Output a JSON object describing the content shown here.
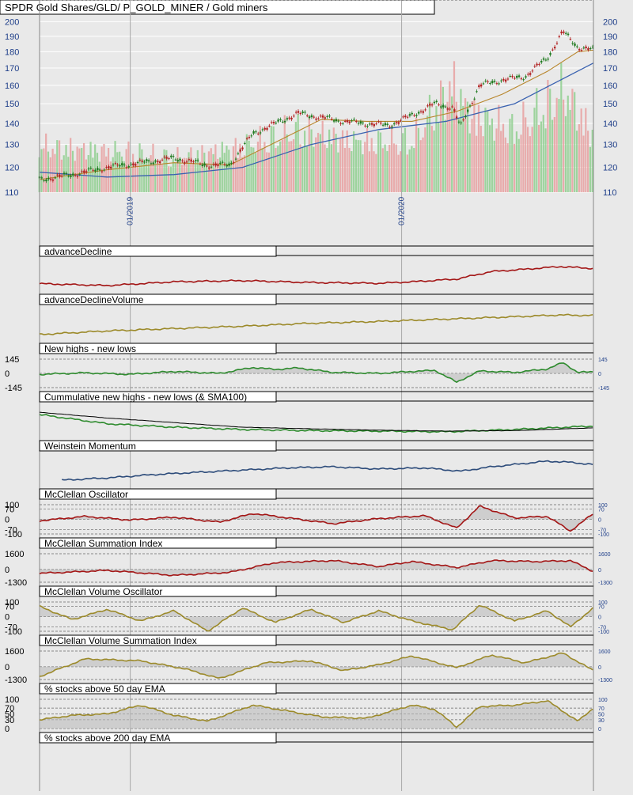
{
  "chart_data": {
    "type": "line",
    "title": "SPDR Gold Shares/GLD/ P_GOLD_MINER / Gold miners",
    "x_range": [
      "2018-09-01",
      "2020-09-15"
    ],
    "x_ticks": [
      {
        "label": "01/2019",
        "date": "2019-01-01"
      },
      {
        "label": "01/2020",
        "date": "2020-01-01"
      }
    ],
    "colors": {
      "price_up": "#1f7a1f",
      "price_down": "#b22222",
      "sma50": "#b8862c",
      "sma200": "#3a62b0",
      "volume_up": "#8fcf8f",
      "volume_down": "#e8a0a0",
      "ad": "#a31515",
      "adv": "#9c8a2a",
      "nhnl": "#2e8b2e",
      "weinstein": "#2c4b7a",
      "mcclellan_osc": "#a31515",
      "mcclellan_vol": "#9c8a2a",
      "pct200": "#8c8c8c"
    },
    "price_panel": {
      "title": "SPDR Gold Shares/GLD/ P_GOLD_MINER / Gold miners",
      "y_ticks": [
        110,
        120,
        130,
        140,
        150,
        160,
        170,
        180,
        190,
        200
      ],
      "y_scale": "log",
      "y_range": [
        110,
        203
      ],
      "close": {
        "x": [
          "2018-09-01",
          "2018-10-15",
          "2018-12-01",
          "2019-01-15",
          "2019-03-01",
          "2019-04-15",
          "2019-05-15",
          "2019-06-15",
          "2019-07-15",
          "2019-08-15",
          "2019-09-15",
          "2019-10-15",
          "2019-11-15",
          "2019-12-15",
          "2020-01-15",
          "2020-02-15",
          "2020-03-10",
          "2020-03-20",
          "2020-04-15",
          "2020-05-15",
          "2020-06-15",
          "2020-07-15",
          "2020-08-05",
          "2020-08-25",
          "2020-09-15"
        ],
        "y": [
          115,
          117,
          120,
          122,
          124,
          121,
          121,
          135,
          140,
          145,
          143,
          141,
          140,
          139,
          144,
          150,
          148,
          138,
          160,
          163,
          165,
          176,
          193,
          183,
          181
        ]
      },
      "sma50": {
        "x": [
          "2018-09-01",
          "2018-12-01",
          "2019-03-01",
          "2019-05-15",
          "2019-07-15",
          "2019-09-15",
          "2019-11-15",
          "2020-01-15",
          "2020-03-15",
          "2020-05-15",
          "2020-07-15",
          "2020-08-25",
          "2020-09-15"
        ],
        "y": [
          115,
          119,
          122,
          121,
          131,
          142,
          141,
          141,
          146,
          155,
          168,
          180,
          181
        ]
      },
      "sma200": {
        "x": [
          "2018-09-01",
          "2018-12-01",
          "2019-03-01",
          "2019-06-01",
          "2019-09-01",
          "2019-12-01",
          "2020-03-01",
          "2020-06-01",
          "2020-09-15"
        ],
        "y": [
          118,
          116,
          117,
          120,
          130,
          137,
          141,
          150,
          173
        ]
      },
      "volume_series": {
        "x": [
          "2018-09-01",
          "2019-01-01",
          "2019-03-01",
          "2019-06-01",
          "2019-08-15",
          "2019-11-01",
          "2020-01-15",
          "2020-03-10",
          "2020-04-01",
          "2020-06-01",
          "2020-08-07",
          "2020-09-15"
        ],
        "y": [
          40,
          35,
          30,
          40,
          55,
          45,
          45,
          95,
          70,
          55,
          90,
          50
        ]
      }
    },
    "panels": [
      {
        "title": "advanceDecline",
        "y_ticks": [],
        "series": [
          {
            "x": [
              "2018-09-01",
              "2018-12-01",
              "2019-03-01",
              "2019-06-01",
              "2019-09-01",
              "2019-12-01",
              "2020-01-15",
              "2020-03-15",
              "2020-05-01",
              "2020-06-15",
              "2020-08-01",
              "2020-09-15"
            ],
            "y": [
              0,
              -0.5,
              0.5,
              0.8,
              0.3,
              0.1,
              0.5,
              1.2,
              3.2,
              3.8,
              4.5,
              4.0
            ]
          }
        ]
      },
      {
        "title": "advanceDeclineVolume",
        "y_ticks": [],
        "series": [
          {
            "x": [
              "2018-09-01",
              "2018-12-01",
              "2019-03-01",
              "2019-06-01",
              "2019-09-01",
              "2019-12-01",
              "2020-03-01",
              "2020-06-01",
              "2020-08-01",
              "2020-09-15"
            ],
            "y": [
              0,
              0.6,
              1.0,
              1.4,
              1.9,
              2.2,
              2.6,
              3.0,
              3.3,
              3.2
            ]
          }
        ]
      },
      {
        "title": "New highs - new lows",
        "y_ticks": [
          145,
          0,
          -145
        ],
        "series": [
          {
            "x": [
              "2018-09-01",
              "2018-11-01",
              "2019-01-01",
              "2019-03-01",
              "2019-05-01",
              "2019-06-15",
              "2019-07-15",
              "2019-08-15",
              "2019-10-01",
              "2019-12-01",
              "2020-01-15",
              "2020-02-15",
              "2020-03-15",
              "2020-04-15",
              "2020-06-01",
              "2020-07-15",
              "2020-08-05",
              "2020-08-25",
              "2020-09-15"
            ],
            "y": [
              -10,
              5,
              -10,
              20,
              0,
              60,
              40,
              55,
              10,
              0,
              20,
              30,
              -90,
              25,
              10,
              45,
              110,
              10,
              15
            ]
          }
        ]
      },
      {
        "title": "Cummulative new highs - new lows (& SMA100)",
        "y_ticks": [],
        "series": [
          {
            "x": [
              "2018-09-01",
              "2018-12-01",
              "2019-03-01",
              "2019-06-01",
              "2019-09-01",
              "2019-12-01",
              "2020-03-01",
              "2020-06-01",
              "2020-09-15"
            ],
            "y": [
              8.0,
              4.0,
              2.5,
              1.5,
              1.0,
              0.8,
              0.5,
              1.5,
              3.0
            ]
          },
          {
            "x": [
              "2018-09-01",
              "2018-12-01",
              "2019-03-01",
              "2019-06-01",
              "2019-09-01",
              "2019-12-01",
              "2020-03-01",
              "2020-06-01",
              "2020-09-15"
            ],
            "y": [
              9.0,
              6.5,
              4.5,
              2.5,
              1.8,
              1.2,
              0.8,
              1.0,
              2.2
            ]
          }
        ]
      },
      {
        "title": "Weinstein Momentum",
        "y_ticks": [],
        "series": [
          {
            "x": [
              "2018-10-01",
              "2018-12-01",
              "2019-02-01",
              "2019-04-01",
              "2019-06-01",
              "2019-08-01",
              "2019-10-01",
              "2019-12-01",
              "2020-02-01",
              "2020-03-20",
              "2020-05-01",
              "2020-06-15",
              "2020-07-15",
              "2020-08-15",
              "2020-09-15"
            ],
            "y": [
              -8,
              -6,
              -3,
              -1,
              1,
              3,
              4,
              2,
              3,
              0,
              4,
              7,
              9,
              8,
              6
            ]
          }
        ]
      },
      {
        "title": "McClellan Oscillator",
        "y_ticks": [
          100,
          70,
          0,
          -70,
          -100
        ],
        "series": [
          {
            "x": [
              "2018-09-01",
              "2018-11-01",
              "2019-01-01",
              "2019-03-01",
              "2019-05-01",
              "2019-06-15",
              "2019-08-01",
              "2019-10-01",
              "2019-12-01",
              "2020-02-01",
              "2020-03-15",
              "2020-04-15",
              "2020-06-01",
              "2020-07-15",
              "2020-08-15",
              "2020-09-15"
            ],
            "y": [
              -10,
              20,
              -5,
              15,
              -20,
              40,
              10,
              -30,
              5,
              25,
              -60,
              90,
              10,
              20,
              -80,
              40
            ]
          }
        ]
      },
      {
        "title": "McClellan Summation Index",
        "y_ticks": [
          1600,
          0,
          -1300
        ],
        "series": [
          {
            "x": [
              "2018-09-01",
              "2018-12-01",
              "2019-03-01",
              "2019-05-15",
              "2019-07-15",
              "2019-10-01",
              "2019-12-01",
              "2020-01-15",
              "2020-03-15",
              "2020-05-01",
              "2020-07-01",
              "2020-08-15",
              "2020-09-15"
            ],
            "y": [
              -400,
              -100,
              -600,
              -300,
              700,
              900,
              300,
              800,
              200,
              900,
              800,
              900,
              -200
            ]
          }
        ]
      },
      {
        "title": "McClellan Volume Oscillator",
        "y_ticks": [
          100,
          70,
          0,
          -70,
          -100
        ],
        "series": [
          {
            "x": [
              "2018-09-01",
              "2018-10-15",
              "2018-12-01",
              "2019-01-15",
              "2019-03-01",
              "2019-04-15",
              "2019-06-01",
              "2019-07-15",
              "2019-09-01",
              "2019-10-15",
              "2019-12-01",
              "2020-01-15",
              "2020-03-10",
              "2020-04-15",
              "2020-06-01",
              "2020-07-15",
              "2020-08-15",
              "2020-09-15"
            ],
            "y": [
              70,
              -20,
              50,
              -30,
              40,
              -100,
              60,
              -40,
              50,
              -40,
              40,
              -30,
              -90,
              80,
              -30,
              40,
              -70,
              60
            ]
          }
        ]
      },
      {
        "title": "McClellan Volume Summation Index",
        "y_ticks": [
          1600,
          0,
          -1300
        ],
        "series": [
          {
            "x": [
              "2018-09-01",
              "2018-11-01",
              "2019-01-15",
              "2019-03-15",
              "2019-05-01",
              "2019-07-01",
              "2019-09-01",
              "2019-10-15",
              "2019-12-01",
              "2020-01-15",
              "2020-03-15",
              "2020-05-01",
              "2020-06-15",
              "2020-08-05",
              "2020-09-15"
            ],
            "y": [
              -1000,
              800,
              600,
              -200,
              -1200,
              400,
              600,
              -400,
              200,
              1100,
              -100,
              1200,
              400,
              1400,
              -400
            ]
          }
        ]
      },
      {
        "title": "% stocks above 50 day EMA",
        "y_ticks": [
          100,
          70,
          50,
          30,
          0
        ],
        "series": [
          {
            "x": [
              "2018-09-01",
              "2018-10-15",
              "2018-12-01",
              "2019-01-15",
              "2019-03-01",
              "2019-04-15",
              "2019-06-15",
              "2019-08-01",
              "2019-09-15",
              "2019-11-15",
              "2020-01-15",
              "2020-02-15",
              "2020-03-15",
              "2020-04-15",
              "2020-06-01",
              "2020-07-15",
              "2020-08-25",
              "2020-09-15"
            ],
            "y": [
              30,
              45,
              50,
              80,
              45,
              25,
              80,
              60,
              40,
              35,
              80,
              65,
              5,
              75,
              80,
              95,
              25,
              70
            ]
          }
        ]
      },
      {
        "title": "% stocks above 200 day EMA",
        "y_ticks": [
          100,
          70,
          50,
          30,
          0
        ],
        "series": [
          {
            "x": [
              "2018-09-01",
              "2018-11-01",
              "2019-01-15",
              "2019-03-01",
              "2019-05-01",
              "2019-06-15",
              "2019-08-01",
              "2019-10-01",
              "2019-12-01",
              "2020-01-15",
              "2020-03-15",
              "2020-04-15",
              "2020-06-01",
              "2020-07-15",
              "2020-08-15",
              "2020-09-15"
            ],
            "y": [
              20,
              30,
              55,
              45,
              50,
              60,
              65,
              55,
              50,
              80,
              15,
              75,
              85,
              95,
              90,
              90
            ]
          }
        ]
      }
    ]
  }
}
